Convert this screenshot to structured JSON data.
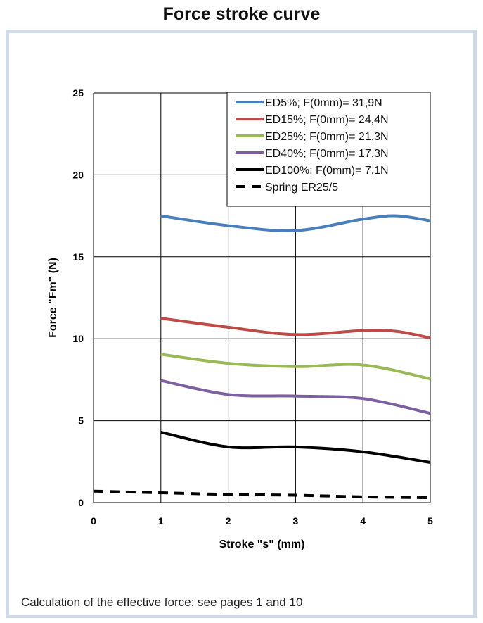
{
  "title": "Force stroke curve",
  "note": "Calculation of the effective force: see pages 1 and 10",
  "chart_data": {
    "type": "line",
    "xlabel": "Stroke \"s\" (mm)",
    "ylabel": "Force \"Fm\" (N)",
    "xlim": [
      0,
      5
    ],
    "ylim": [
      0,
      25
    ],
    "xticks": [
      0,
      1,
      2,
      3,
      4,
      5
    ],
    "yticks": [
      0,
      5,
      10,
      15,
      20,
      25
    ],
    "grid": true,
    "legend_position": "top-right",
    "series": [
      {
        "name": "ED5%; F(0mm)= 31,9N",
        "color": "#4a7ebb",
        "dash": false,
        "x": [
          1,
          2,
          3,
          4,
          4.5,
          5
        ],
        "y": [
          17.5,
          16.9,
          16.6,
          17.3,
          17.5,
          17.2
        ]
      },
      {
        "name": "ED15%; F(0mm)= 24,4N",
        "color": "#be4b48",
        "dash": false,
        "x": [
          1,
          2,
          3,
          4,
          4.5,
          5
        ],
        "y": [
          11.25,
          10.7,
          10.25,
          10.5,
          10.45,
          10.05
        ]
      },
      {
        "name": "ED25%; F(0mm)= 21,3N",
        "color": "#98b954",
        "dash": false,
        "x": [
          1,
          2,
          3,
          4,
          5
        ],
        "y": [
          9.05,
          8.5,
          8.3,
          8.4,
          7.55
        ]
      },
      {
        "name": "ED40%; F(0mm)= 17,3N",
        "color": "#7d60a0",
        "dash": false,
        "x": [
          1,
          2,
          3,
          4,
          5
        ],
        "y": [
          7.45,
          6.6,
          6.5,
          6.35,
          5.45
        ]
      },
      {
        "name": "ED100%; F(0mm)= 7,1N",
        "color": "#000000",
        "dash": false,
        "x": [
          1,
          2,
          3,
          4,
          5
        ],
        "y": [
          4.3,
          3.4,
          3.4,
          3.1,
          2.45
        ]
      },
      {
        "name": "Spring ER25/5",
        "color": "#000000",
        "dash": true,
        "x": [
          0,
          1,
          2,
          3,
          4,
          5
        ],
        "y": [
          0.7,
          0.6,
          0.5,
          0.45,
          0.35,
          0.3
        ]
      }
    ]
  }
}
